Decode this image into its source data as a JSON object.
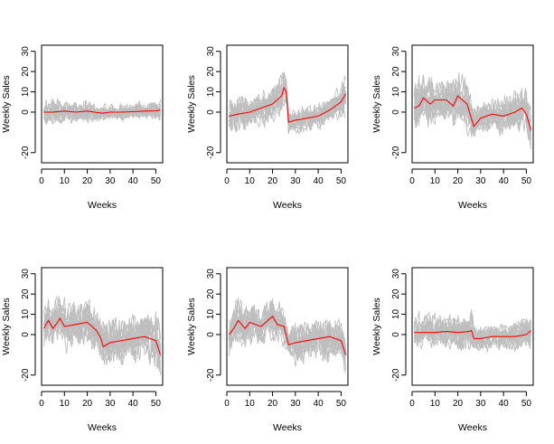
{
  "chart_data": [
    {
      "type": "line",
      "xlabel": "Weeks",
      "ylabel": "Weekly Sales",
      "xlim": [
        0,
        53
      ],
      "ylim": [
        -25,
        33
      ],
      "xticks": [
        "0",
        "10",
        "20",
        "30",
        "40",
        "50"
      ],
      "yticks": [
        "-20",
        "0",
        "10",
        "20",
        "30"
      ],
      "colors": {
        "samples": "#bebebe",
        "mean": "#ff0000"
      },
      "series": [
        {
          "role": "mean",
          "x": [
            1,
            5,
            10,
            15,
            20,
            26,
            27,
            30,
            35,
            40,
            45,
            50,
            52
          ],
          "y": [
            0,
            0,
            0.5,
            0,
            0.5,
            -0.5,
            -0.5,
            0,
            0,
            0.2,
            0.5,
            0.6,
            1
          ]
        }
      ],
      "band": {
        "x": [
          1,
          5,
          10,
          15,
          20,
          25,
          26,
          27,
          30,
          35,
          40,
          45,
          50,
          52
        ],
        "upper": [
          10,
          12,
          9,
          9,
          8,
          8,
          6,
          6,
          6,
          6,
          7,
          7,
          10,
          12
        ],
        "lower": [
          -8,
          -8,
          -7,
          -8,
          -8,
          -7,
          -7,
          -7,
          -6,
          -7,
          -6,
          -6,
          -7,
          -8
        ]
      }
    },
    {
      "type": "line",
      "xlabel": "Weeks",
      "ylabel": "Weekly Sales",
      "xlim": [
        0,
        53
      ],
      "ylim": [
        -25,
        33
      ],
      "xticks": [
        "0",
        "10",
        "20",
        "30",
        "40",
        "50"
      ],
      "yticks": [
        "-20",
        "0",
        "10",
        "20",
        "30"
      ],
      "colors": {
        "samples": "#bebebe",
        "mean": "#ff0000"
      },
      "series": [
        {
          "role": "mean",
          "x": [
            1,
            5,
            10,
            15,
            20,
            24,
            25,
            26,
            27,
            30,
            35,
            40,
            45,
            50,
            52
          ],
          "y": [
            -2,
            -1,
            0,
            2,
            4,
            8,
            12,
            10,
            -5,
            -4,
            -3,
            -2,
            1,
            5,
            9
          ]
        }
      ],
      "band": {
        "x": [
          1,
          5,
          10,
          15,
          20,
          24,
          25,
          26,
          27,
          30,
          35,
          40,
          45,
          50,
          52
        ],
        "upper": [
          12,
          14,
          12,
          16,
          20,
          28,
          30,
          22,
          3,
          5,
          6,
          7,
          10,
          20,
          30
        ],
        "lower": [
          -14,
          -12,
          -12,
          -10,
          -10,
          -5,
          -2,
          0,
          -16,
          -14,
          -14,
          -12,
          -10,
          -8,
          -4
        ]
      }
    },
    {
      "type": "line",
      "xlabel": "Weeks",
      "ylabel": "Weekly Sales",
      "xlim": [
        0,
        53
      ],
      "ylim": [
        -25,
        33
      ],
      "xticks": [
        "0",
        "10",
        "20",
        "30",
        "40",
        "50"
      ],
      "yticks": [
        "-20",
        "0",
        "10",
        "20",
        "30"
      ],
      "colors": {
        "samples": "#bebebe",
        "mean": "#ff0000"
      },
      "series": [
        {
          "role": "mean",
          "x": [
            1,
            3,
            5,
            8,
            10,
            15,
            18,
            20,
            24,
            27,
            30,
            35,
            40,
            45,
            48,
            50,
            52
          ],
          "y": [
            2,
            3,
            7,
            4,
            6,
            6,
            3,
            8,
            4,
            -7,
            -3,
            -1,
            -2,
            0,
            2,
            -1,
            -9
          ]
        }
      ],
      "band": {
        "x": [
          1,
          5,
          10,
          15,
          20,
          24,
          27,
          30,
          35,
          40,
          45,
          50,
          52
        ],
        "upper": [
          30,
          25,
          25,
          22,
          28,
          25,
          8,
          10,
          12,
          14,
          18,
          20,
          12
        ],
        "lower": [
          -10,
          -10,
          -12,
          -12,
          -10,
          -10,
          -20,
          -15,
          -14,
          -12,
          -12,
          -18,
          -22
        ]
      }
    },
    {
      "type": "line",
      "xlabel": "Weeks",
      "ylabel": "Weekly Sales",
      "xlim": [
        0,
        53
      ],
      "ylim": [
        -25,
        33
      ],
      "xticks": [
        "0",
        "10",
        "20",
        "30",
        "40",
        "50"
      ],
      "yticks": [
        "-20",
        "0",
        "10",
        "20",
        "30"
      ],
      "colors": {
        "samples": "#bebebe",
        "mean": "#ff0000"
      },
      "series": [
        {
          "role": "mean",
          "x": [
            1,
            3,
            5,
            7,
            8,
            10,
            15,
            20,
            24,
            26,
            27,
            30,
            35,
            40,
            45,
            50,
            52
          ],
          "y": [
            3,
            7,
            3,
            6,
            8,
            4,
            5,
            6,
            2,
            -2,
            -6,
            -4,
            -3,
            -2,
            -1,
            -3,
            -10
          ]
        }
      ],
      "band": {
        "x": [
          1,
          5,
          10,
          15,
          20,
          25,
          27,
          30,
          35,
          40,
          45,
          50,
          52
        ],
        "upper": [
          22,
          22,
          28,
          24,
          28,
          18,
          12,
          18,
          16,
          16,
          18,
          22,
          15
        ],
        "lower": [
          -12,
          -10,
          -12,
          -12,
          -10,
          -12,
          -22,
          -16,
          -16,
          -14,
          -14,
          -16,
          -20
        ]
      }
    },
    {
      "type": "line",
      "xlabel": "Weeks",
      "ylabel": "Weekly Sales",
      "xlim": [
        0,
        53
      ],
      "ylim": [
        -25,
        33
      ],
      "xticks": [
        "0",
        "10",
        "20",
        "30",
        "40",
        "50"
      ],
      "yticks": [
        "-20",
        "0",
        "10",
        "20",
        "30"
      ],
      "colors": {
        "samples": "#bebebe",
        "mean": "#ff0000"
      },
      "series": [
        {
          "role": "mean",
          "x": [
            1,
            3,
            5,
            8,
            10,
            15,
            20,
            22,
            25,
            27,
            30,
            35,
            40,
            45,
            50,
            52
          ],
          "y": [
            0,
            3,
            7,
            3,
            6,
            4,
            9,
            5,
            4,
            -5,
            -4,
            -3,
            -2,
            -1,
            -3,
            -10
          ]
        }
      ],
      "band": {
        "x": [
          1,
          5,
          10,
          15,
          20,
          25,
          27,
          30,
          35,
          40,
          45,
          50,
          52
        ],
        "upper": [
          22,
          25,
          22,
          20,
          24,
          18,
          10,
          14,
          14,
          16,
          18,
          16,
          10
        ],
        "lower": [
          -12,
          -10,
          -12,
          -12,
          -10,
          -12,
          -18,
          -16,
          -16,
          -14,
          -14,
          -18,
          -22
        ]
      }
    },
    {
      "type": "line",
      "xlabel": "Weeks",
      "ylabel": "Weekly Sales",
      "xlim": [
        0,
        53
      ],
      "ylim": [
        -25,
        33
      ],
      "xticks": [
        "0",
        "10",
        "20",
        "30",
        "40",
        "50"
      ],
      "yticks": [
        "-20",
        "0",
        "10",
        "20",
        "30"
      ],
      "colors": {
        "samples": "#bebebe",
        "mean": "#ff0000"
      },
      "series": [
        {
          "role": "mean",
          "x": [
            1,
            5,
            10,
            15,
            20,
            25,
            26,
            27,
            30,
            35,
            40,
            45,
            50,
            52
          ],
          "y": [
            1,
            1,
            1,
            1.5,
            1,
            1.5,
            2,
            -2,
            -2,
            -1,
            -1,
            -1,
            0,
            2
          ]
        }
      ],
      "band": {
        "x": [
          1,
          5,
          10,
          15,
          20,
          25,
          26,
          27,
          30,
          35,
          40,
          45,
          50,
          52
        ],
        "upper": [
          16,
          14,
          16,
          14,
          18,
          16,
          22,
          8,
          10,
          8,
          10,
          12,
          14,
          16
        ],
        "lower": [
          -8,
          -8,
          -8,
          -8,
          -8,
          -8,
          -8,
          -10,
          -10,
          -10,
          -10,
          -10,
          -12,
          -14
        ]
      }
    }
  ]
}
